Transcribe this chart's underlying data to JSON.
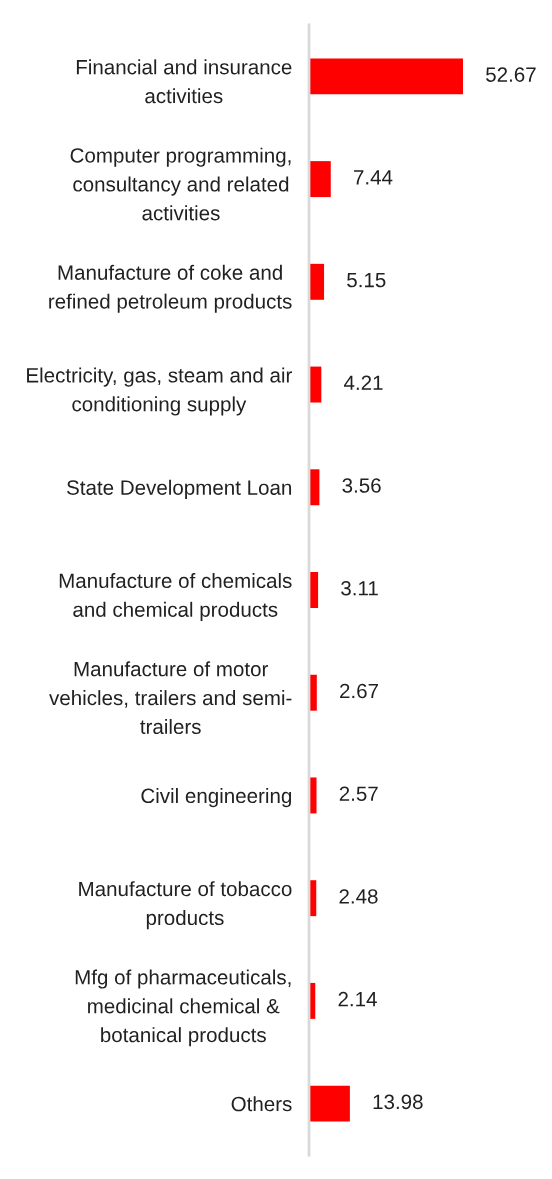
{
  "chart_data": {
    "type": "bar",
    "orientation": "horizontal",
    "categories": [
      "Financial and insurance\nactivities",
      "Computer programming,\nconsultancy and related\nactivities",
      "Manufacture of coke and\nrefined petroleum products",
      "Electricity, gas, steam and air\nconditioning supply",
      "State Development Loan",
      "Manufacture of chemicals\nand chemical products",
      "Manufacture of motor\nvehicles, trailers and semi-\ntrailers",
      "Civil engineering",
      "Manufacture of tobacco\nproducts",
      "Mfg of pharmaceuticals,\nmedicinal chemical &\nbotanical products",
      "Others"
    ],
    "values": [
      52.67,
      7.44,
      5.15,
      4.21,
      3.56,
      3.11,
      2.67,
      2.57,
      2.48,
      2.14,
      13.98
    ],
    "color": "#ff0000",
    "data_labels": true
  }
}
